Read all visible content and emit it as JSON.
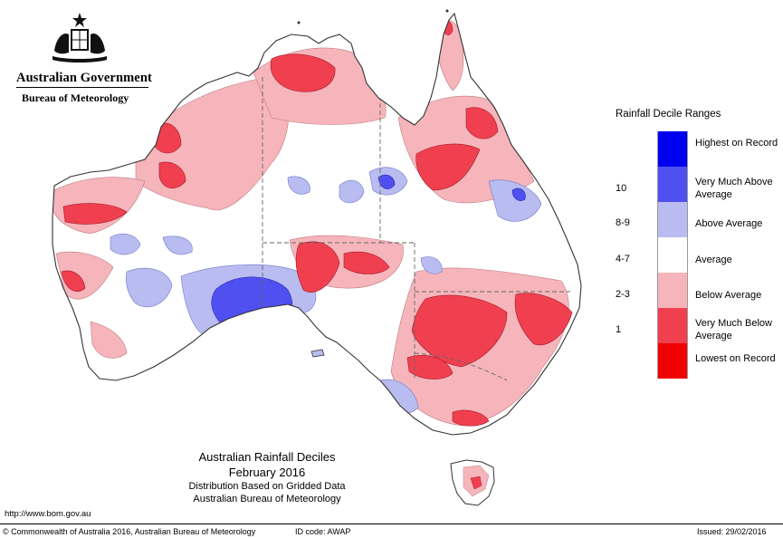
{
  "header": {
    "agency": "Australian Government",
    "department": "Bureau of Meteorology",
    "crest_icon": "coat-of-arms-icon"
  },
  "legend": {
    "title": "Rainfall Decile Ranges",
    "items": [
      {
        "range": "",
        "label": "Highest on Record",
        "color": "#0000f0"
      },
      {
        "range": "10",
        "label": "Very Much Above Average",
        "color": "#5050f0"
      },
      {
        "range": "8-9",
        "label": "Above Average",
        "color": "#b8bcf0"
      },
      {
        "range": "4-7",
        "label": "Average",
        "color": "#ffffff"
      },
      {
        "range": "2-3",
        "label": "Below Average",
        "color": "#f5b5bb"
      },
      {
        "range": "1",
        "label": "Very Much Below Average",
        "color": "#f04050"
      },
      {
        "range": "",
        "label": "Lowest on Record",
        "color": "#f00000"
      }
    ]
  },
  "map_title": {
    "line1": "Australian Rainfall Deciles",
    "line2": "February 2016",
    "line3": "Distribution Based on Gridded Data",
    "line4": "Australian Bureau of Meteorology"
  },
  "footer": {
    "url": "http://www.bom.gov.au",
    "copyright": "© Commonwealth of Australia 2016, Australian Bureau of Meteorology",
    "id_code": "ID code: AWAP",
    "issued": "Issued: 29/02/2016"
  }
}
